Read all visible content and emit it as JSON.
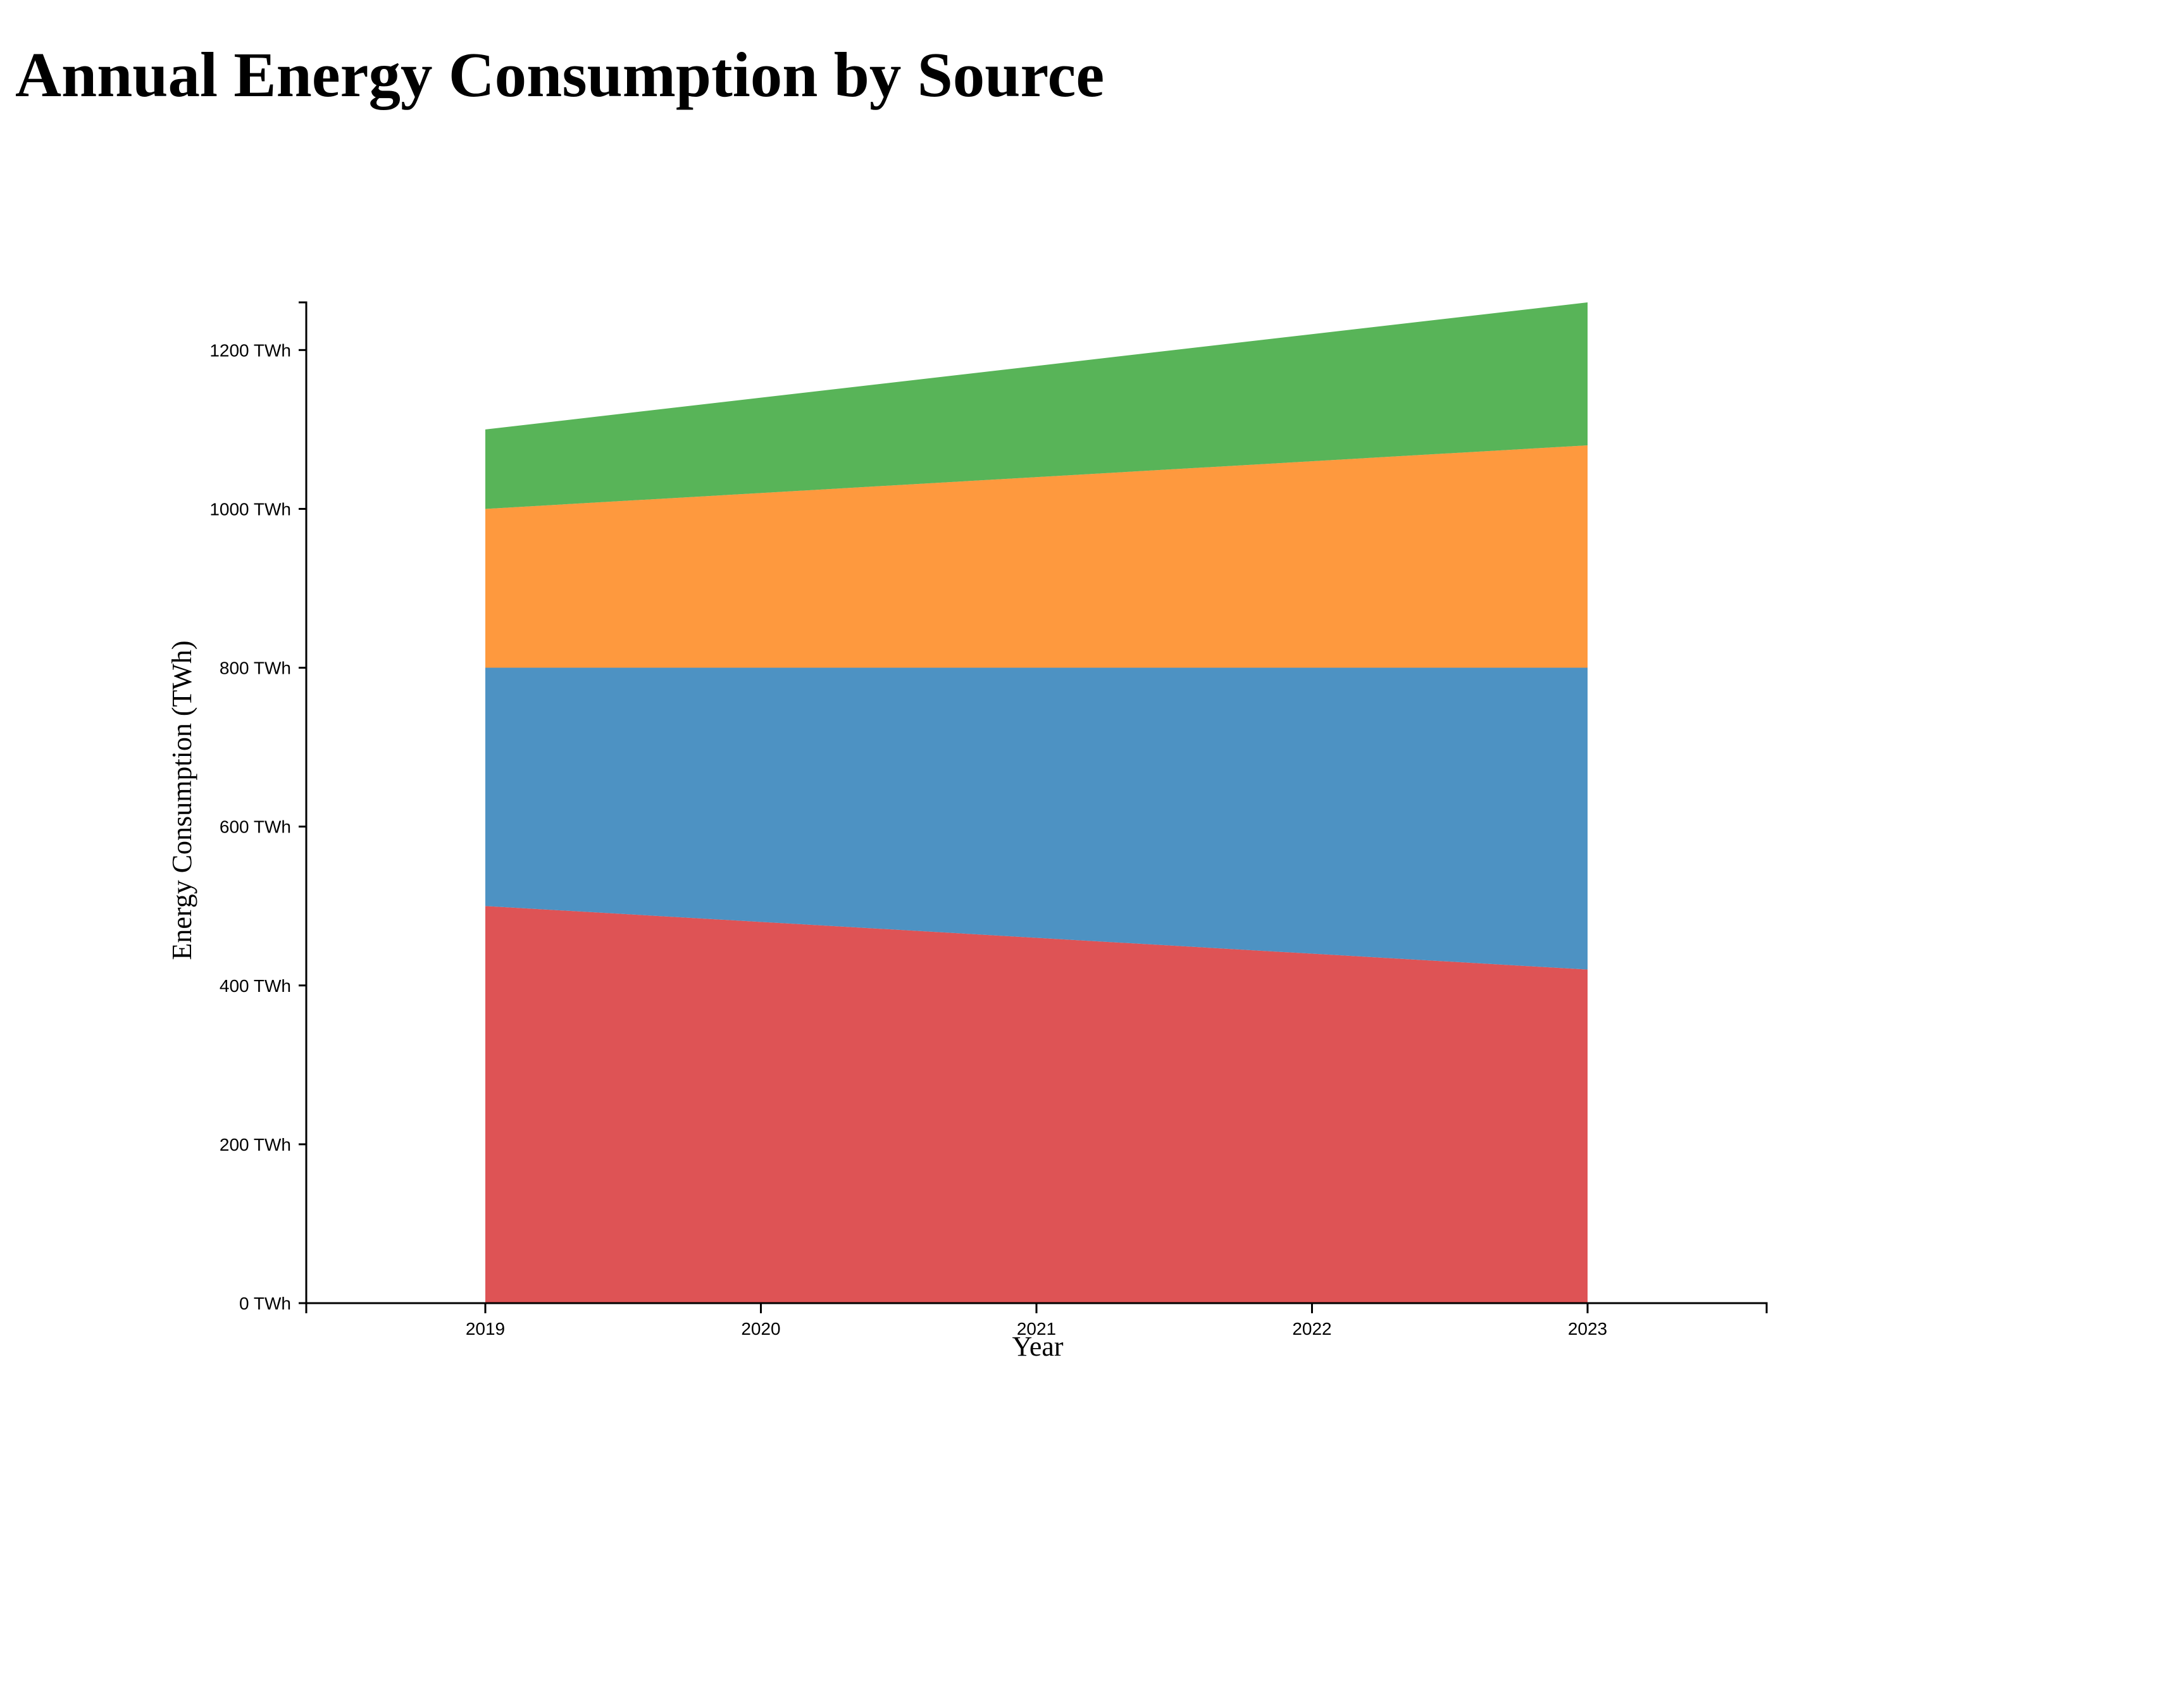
{
  "page_title": "Annual Energy Consumption by Source",
  "chart_data": {
    "type": "area",
    "stacked": true,
    "title": "Annual Energy Consumption by Source",
    "xlabel": "Year",
    "ylabel": "Energy Consumption (TWh)",
    "x": [
      "2019",
      "2020",
      "2021",
      "2022",
      "2023"
    ],
    "ylim": [
      0,
      1260
    ],
    "yticks": [
      0,
      200,
      400,
      600,
      800,
      1000,
      1200
    ],
    "ytick_suffix": " TWh",
    "grid": false,
    "legend": "none",
    "series": [
      {
        "color": "#de5355",
        "values": [
          500,
          480,
          460,
          440,
          420
        ]
      },
      {
        "color": "#4d92c3",
        "values": [
          300,
          320,
          340,
          360,
          380
        ]
      },
      {
        "color": "#fe993e",
        "values": [
          200,
          220,
          240,
          260,
          280
        ]
      },
      {
        "color": "#58b458",
        "values": [
          100,
          120,
          140,
          160,
          180
        ]
      }
    ]
  }
}
